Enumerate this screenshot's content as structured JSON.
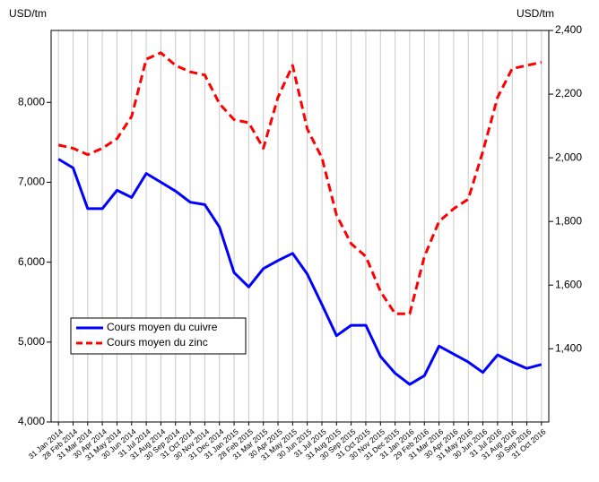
{
  "chart_data": {
    "type": "line",
    "y_label": "USD/tm",
    "y2_label": "USD/tm",
    "categories": [
      "31 Jan 2014",
      "28 Feb 2014",
      "31 Mar 2014",
      "30 Apr 2014",
      "31 May 2014",
      "30 Jun 2014",
      "31 Jul 2014",
      "31 Aug 2014",
      "30 Sep 2014",
      "31 Oct 2014",
      "30 Nov 2014",
      "31 Dec 2014",
      "31 Jan 2015",
      "28 Feb 2015",
      "31 Mar 2015",
      "30 Apr 2015",
      "31 May 2015",
      "30 Jun 2015",
      "31 Jul 2015",
      "31 Aug 2015",
      "30 Sep 2015",
      "31 Oct 2015",
      "30 Nov 2015",
      "31 Dec 2015",
      "31 Jan 2016",
      "29 Feb 2016",
      "31 Mar 2016",
      "30 Apr 2016",
      "31 May 2016",
      "30 Jun 2016",
      "31 Jul 2016",
      "31 Aug 2016",
      "30 Sep 2016",
      "31 Oct 2016"
    ],
    "series": [
      {
        "name": "Cours moyen du cuivre",
        "color": "#0000ff",
        "dash": "solid",
        "values": [
          7290,
          7180,
          6670,
          6670,
          6900,
          6810,
          7110,
          7000,
          6890,
          6750,
          6720,
          6440,
          5870,
          5690,
          5920,
          6020,
          6110,
          5850,
          5470,
          5080,
          5210,
          5210,
          4820,
          4610,
          4470,
          4580,
          4950,
          4850,
          4750,
          4620,
          4840,
          4750,
          4670,
          4720
        ]
      },
      {
        "name": "Cours moyen du zinc",
        "color": "#ff0000",
        "dash": "dashed",
        "axis": "y2",
        "values": [
          2040,
          2030,
          2010,
          2030,
          2060,
          2130,
          2310,
          2330,
          2290,
          2270,
          2260,
          2170,
          2120,
          2110,
          2030,
          2190,
          2290,
          2090,
          2000,
          1820,
          1730,
          1690,
          1580,
          1510,
          1510,
          1690,
          1800,
          1840,
          1870,
          2020,
          2190,
          2280,
          2290,
          2300
        ]
      }
    ],
    "ylim": [
      4000,
      8900
    ],
    "yticks": [
      {
        "value": 4000,
        "label": "4,000"
      },
      {
        "value": 5000,
        "label": "5,000"
      },
      {
        "value": 6000,
        "label": "6,000"
      },
      {
        "value": 7000,
        "label": "7,000"
      },
      {
        "value": 8000,
        "label": "8,000"
      }
    ],
    "y2lim": [
      1170,
      2400
    ],
    "y2ticks": [
      {
        "value": 1400,
        "label": "1,400"
      },
      {
        "value": 1600,
        "label": "1,600"
      },
      {
        "value": 1800,
        "label": "1,800"
      },
      {
        "value": 2000,
        "label": "2,000"
      },
      {
        "value": 2200,
        "label": "2,200"
      },
      {
        "value": 2400,
        "label": "2,400"
      }
    ],
    "grid": "x",
    "legend": "lower left"
  }
}
